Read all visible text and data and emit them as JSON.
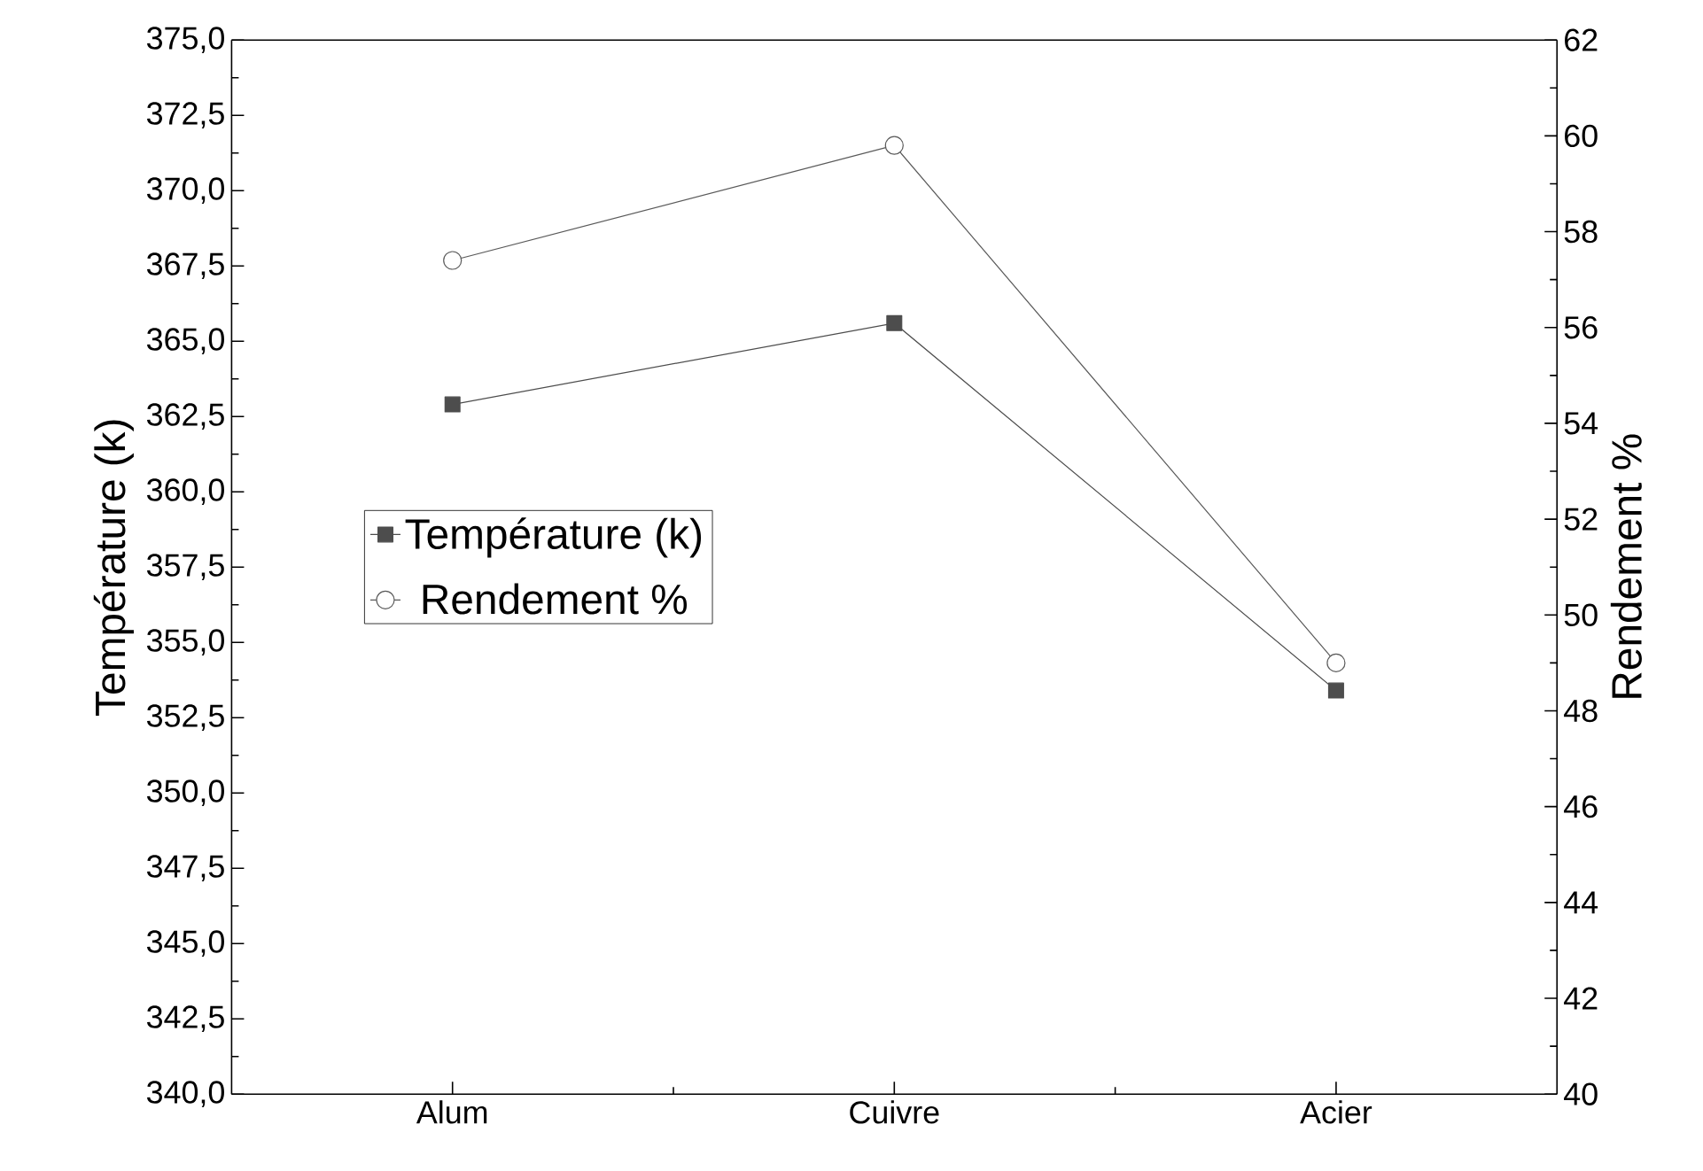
{
  "chart_data": {
    "type": "line",
    "ylabel": "Température (k)",
    "y2label": "Rendement %",
    "categories": [
      "Alum",
      "Cuivre",
      "Acier"
    ],
    "ylim": [
      340,
      375
    ],
    "yticks": [
      {
        "value": 340,
        "label": "340,0"
      },
      {
        "value": 342.5,
        "label": "342,5"
      },
      {
        "value": 345,
        "label": "345,0"
      },
      {
        "value": 347.5,
        "label": "347,5"
      },
      {
        "value": 350,
        "label": "350,0"
      },
      {
        "value": 352.5,
        "label": "352,5"
      },
      {
        "value": 355,
        "label": "355,0"
      },
      {
        "value": 357.5,
        "label": "357,5"
      },
      {
        "value": 360,
        "label": "360,0"
      },
      {
        "value": 362.5,
        "label": "362,5"
      },
      {
        "value": 365,
        "label": "365,0"
      },
      {
        "value": 367.5,
        "label": "367,5"
      },
      {
        "value": 370,
        "label": "370,0"
      },
      {
        "value": 372.5,
        "label": "372,5"
      },
      {
        "value": 375,
        "label": "375,0"
      }
    ],
    "y2lim": [
      40,
      62
    ],
    "y2ticks": [
      40,
      42,
      44,
      46,
      48,
      50,
      52,
      54,
      56,
      58,
      60,
      62
    ],
    "legend": "left",
    "grid": false,
    "series": [
      {
        "name": "Température (k)",
        "color": "#4d4d4d",
        "marker": "square",
        "values": [
          362.9,
          365.6,
          353.4
        ]
      },
      {
        "name": "Rendement %",
        "color": "#5a5a5a",
        "marker": "circle",
        "axis": "y2",
        "values": [
          57.4,
          59.8,
          49.0
        ]
      }
    ]
  }
}
